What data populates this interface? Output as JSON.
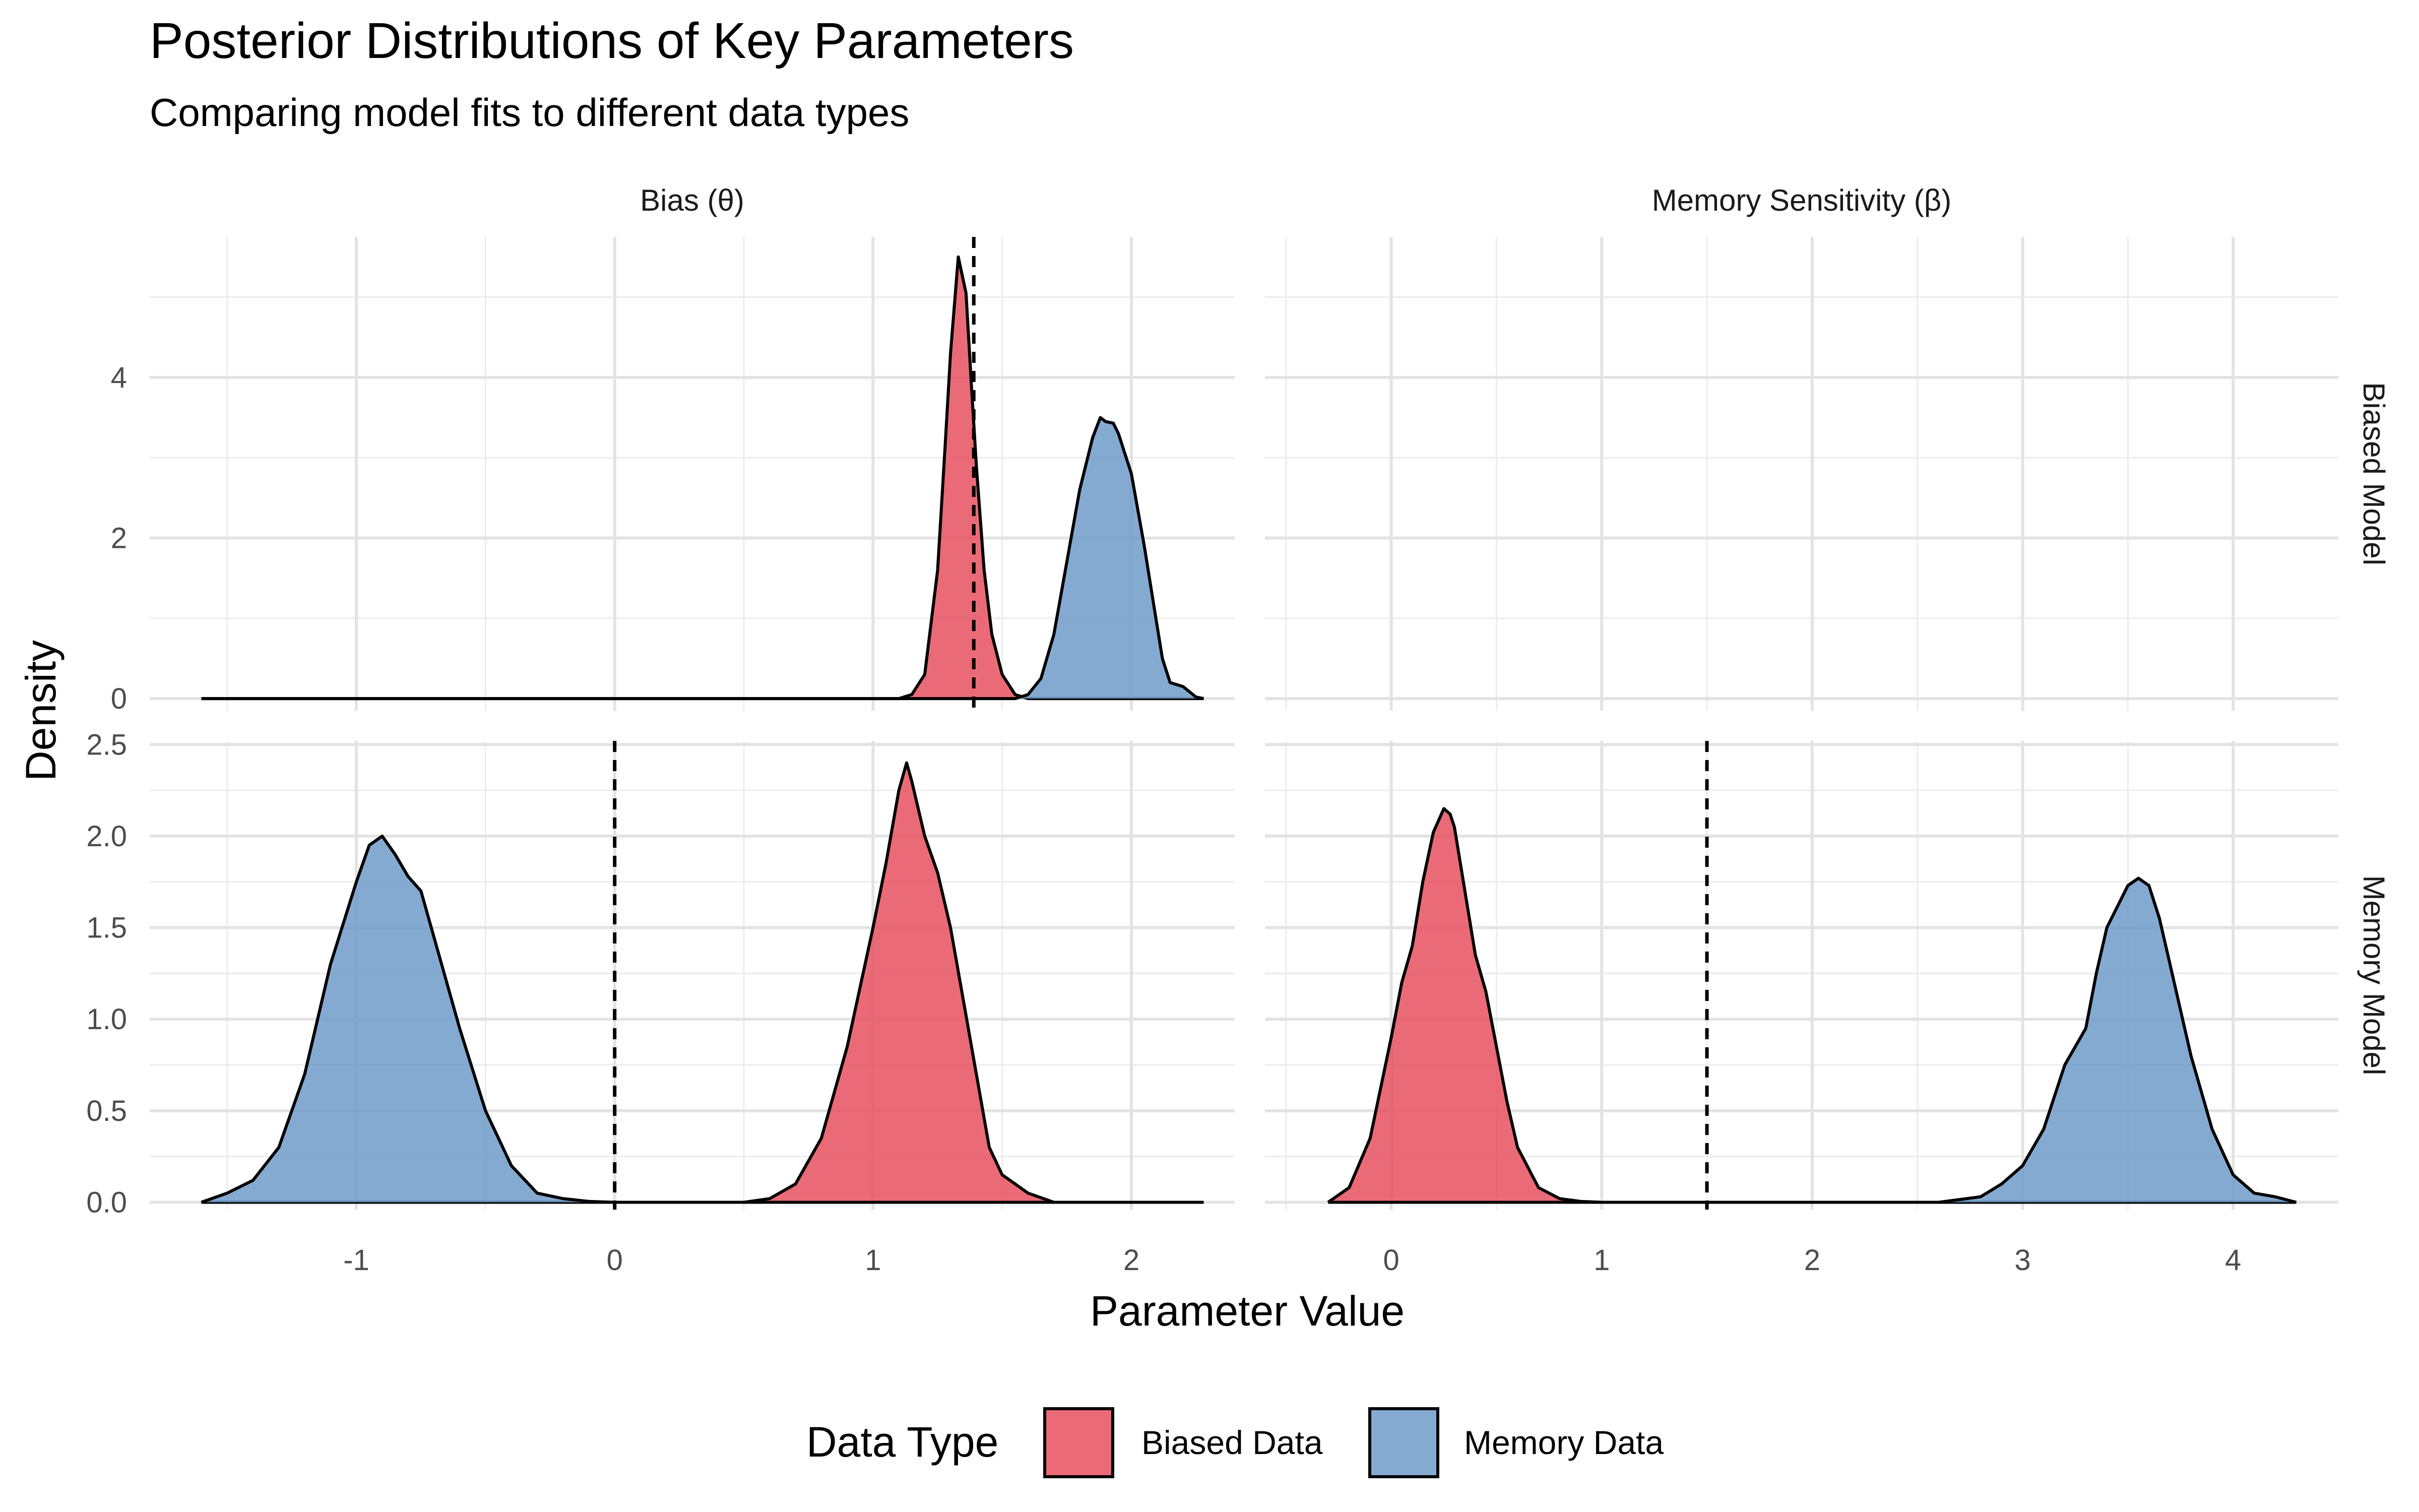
{
  "title": "Posterior Distributions of Key Parameters",
  "subtitle": "Comparing model fits to different data types",
  "x_axis_title": "Parameter Value",
  "y_axis_title": "Density",
  "legend": {
    "title": "Data Type",
    "items": [
      {
        "label": "Biased Data",
        "color": "#E8505F"
      },
      {
        "label": "Memory Data",
        "color": "#6F9BC9"
      }
    ]
  },
  "chart_data": {
    "type": "area",
    "facet_columns": [
      "Bias (θ)",
      "Memory Sensitivity (β)"
    ],
    "facet_rows": [
      "Biased Model",
      "Memory Model"
    ],
    "column_xlim": [
      [
        -1.8,
        2.4
      ],
      [
        -0.6,
        4.5
      ]
    ],
    "column_xticks": [
      [
        -1,
        0,
        1,
        2
      ],
      [
        0,
        1,
        2,
        3,
        4
      ]
    ],
    "row_ylim": [
      [
        -0.15,
        5.75
      ],
      [
        -0.04,
        2.52
      ]
    ],
    "row_yticks": [
      [
        0,
        2,
        4
      ],
      [
        0.0,
        0.5,
        1.0,
        1.5,
        2.0,
        2.5
      ]
    ],
    "grid": true,
    "legend_position": "bottom",
    "panels": [
      {
        "column": "Bias (θ)",
        "row": "Biased Model",
        "reference_line": 1.39,
        "series": [
          {
            "name": "Biased Data",
            "x": [
              -1.6,
              1.1,
              1.15,
              1.2,
              1.25,
              1.28,
              1.3,
              1.33,
              1.36,
              1.38,
              1.4,
              1.43,
              1.46,
              1.5,
              1.55,
              1.6,
              2.28
            ],
            "y": [
              0,
              0,
              0.05,
              0.3,
              1.6,
              3.2,
              4.3,
              5.5,
              5.05,
              3.95,
              2.9,
              1.6,
              0.8,
              0.3,
              0.05,
              0,
              0
            ]
          },
          {
            "name": "Memory Data",
            "x": [
              -1.6,
              1.55,
              1.6,
              1.65,
              1.7,
              1.75,
              1.8,
              1.85,
              1.88,
              1.9,
              1.93,
              1.95,
              2.0,
              2.05,
              2.1,
              2.12,
              2.15,
              2.2,
              2.25,
              2.28
            ],
            "y": [
              0,
              0,
              0.05,
              0.25,
              0.8,
              1.7,
              2.6,
              3.25,
              3.5,
              3.45,
              3.43,
              3.3,
              2.8,
              1.9,
              0.9,
              0.5,
              0.2,
              0.15,
              0.02,
              0
            ]
          }
        ]
      },
      {
        "column": "Memory Sensitivity (β)",
        "row": "Biased Model",
        "reference_line": null,
        "series": []
      },
      {
        "column": "Bias (θ)",
        "row": "Memory Model",
        "reference_line": 0,
        "series": [
          {
            "name": "Biased Data",
            "x": [
              -1.6,
              0.5,
              0.6,
              0.7,
              0.8,
              0.9,
              1.0,
              1.05,
              1.1,
              1.13,
              1.15,
              1.2,
              1.25,
              1.3,
              1.35,
              1.4,
              1.45,
              1.5,
              1.55,
              1.6,
              1.7,
              2.28
            ],
            "y": [
              0,
              0,
              0.02,
              0.1,
              0.35,
              0.85,
              1.5,
              1.85,
              2.25,
              2.4,
              2.3,
              2.0,
              1.8,
              1.5,
              1.1,
              0.7,
              0.3,
              0.15,
              0.1,
              0.05,
              0,
              0
            ]
          },
          {
            "name": "Memory Data",
            "x": [
              -1.6,
              -1.5,
              -1.4,
              -1.3,
              -1.2,
              -1.1,
              -1.0,
              -0.95,
              -0.9,
              -0.85,
              -0.8,
              -0.75,
              -0.7,
              -0.65,
              -0.6,
              -0.5,
              -0.4,
              -0.3,
              -0.2,
              -0.1,
              0.0,
              2.28
            ],
            "y": [
              0,
              0.05,
              0.12,
              0.3,
              0.7,
              1.3,
              1.75,
              1.95,
              2.0,
              1.9,
              1.78,
              1.7,
              1.45,
              1.2,
              0.95,
              0.5,
              0.2,
              0.05,
              0.02,
              0.005,
              0,
              0
            ]
          }
        ]
      },
      {
        "column": "Memory Sensitivity (β)",
        "row": "Memory Model",
        "reference_line": 1.5,
        "series": [
          {
            "name": "Biased Data",
            "x": [
              -0.3,
              -0.2,
              -0.1,
              0.0,
              0.05,
              0.1,
              0.15,
              0.2,
              0.25,
              0.28,
              0.3,
              0.35,
              0.4,
              0.45,
              0.5,
              0.55,
              0.6,
              0.7,
              0.8,
              0.9,
              1.0,
              4.3
            ],
            "y": [
              0,
              0.08,
              0.35,
              0.9,
              1.2,
              1.4,
              1.75,
              2.02,
              2.15,
              2.12,
              2.05,
              1.7,
              1.35,
              1.15,
              0.85,
              0.55,
              0.3,
              0.08,
              0.02,
              0.005,
              0,
              0
            ]
          },
          {
            "name": "Memory Data",
            "x": [
              -0.3,
              2.6,
              2.8,
              2.9,
              3.0,
              3.1,
              3.2,
              3.25,
              3.3,
              3.35,
              3.4,
              3.5,
              3.55,
              3.6,
              3.65,
              3.7,
              3.8,
              3.9,
              4.0,
              4.1,
              4.2,
              4.3
            ],
            "y": [
              0,
              0,
              0.03,
              0.1,
              0.2,
              0.4,
              0.75,
              0.85,
              0.95,
              1.25,
              1.5,
              1.73,
              1.77,
              1.73,
              1.55,
              1.3,
              0.8,
              0.4,
              0.15,
              0.05,
              0.03,
              0
            ]
          }
        ]
      }
    ]
  }
}
